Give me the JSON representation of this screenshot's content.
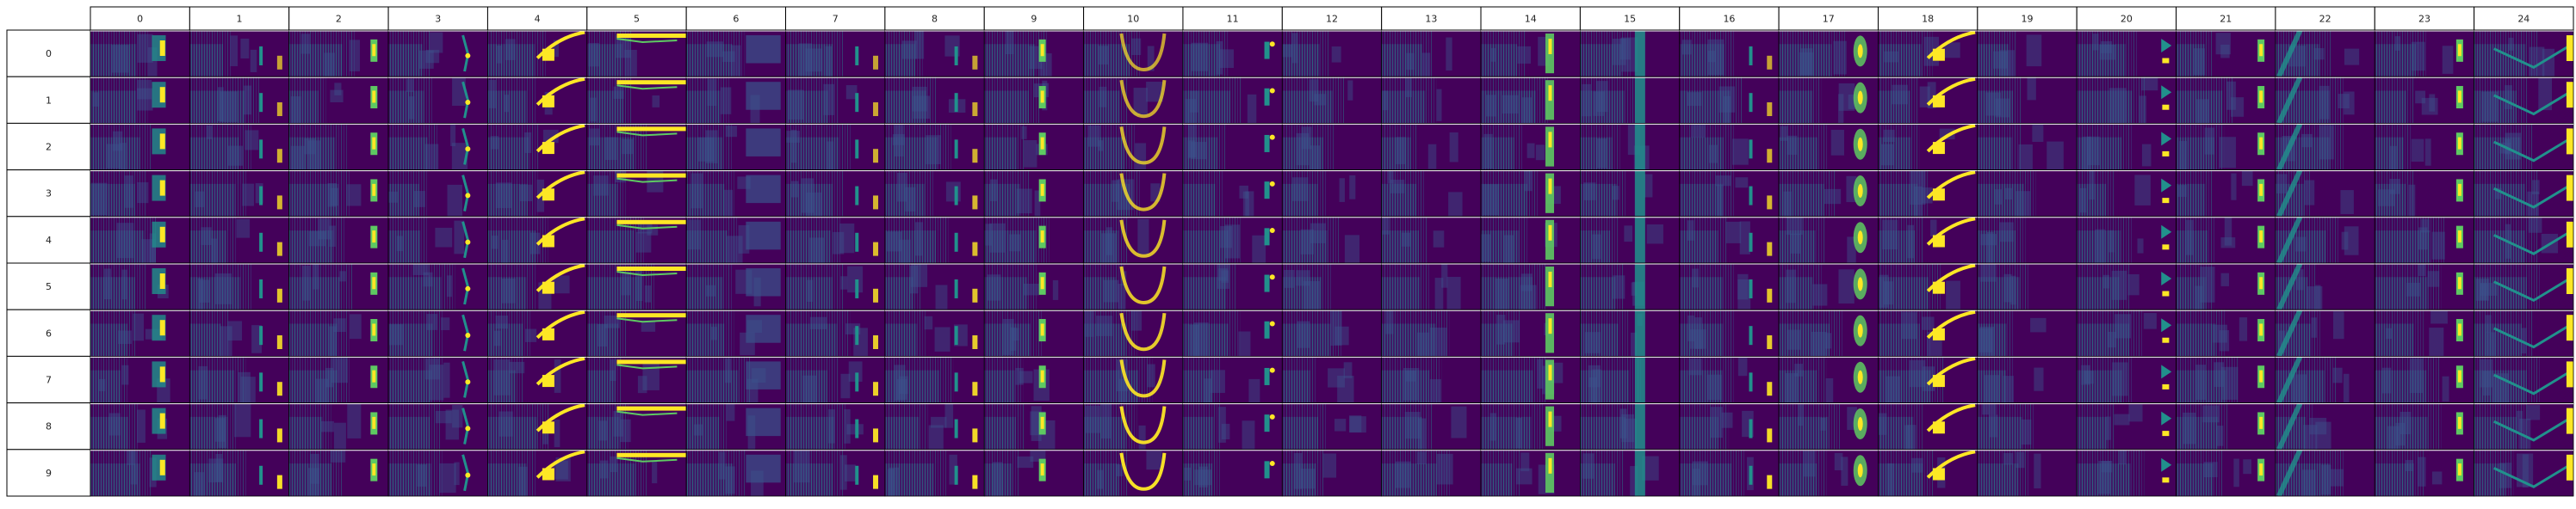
{
  "chart_data": {
    "type": "heatmap",
    "title": "",
    "xlabel": "",
    "ylabel": "",
    "columns": [
      "0",
      "1",
      "2",
      "3",
      "4",
      "5",
      "6",
      "7",
      "8",
      "9",
      "10",
      "11",
      "12",
      "13",
      "14",
      "15",
      "16",
      "17",
      "18",
      "19",
      "20",
      "21",
      "22",
      "23",
      "24"
    ],
    "rows": [
      "0",
      "1",
      "2",
      "3",
      "4",
      "5",
      "6",
      "7",
      "8",
      "9"
    ],
    "colormap": "viridis",
    "colors": {
      "background": "#44015a",
      "low": "#3b528b",
      "mid": "#21918c",
      "high": "#5ec962",
      "peak": "#fde725",
      "grid": "#000000"
    }
  }
}
